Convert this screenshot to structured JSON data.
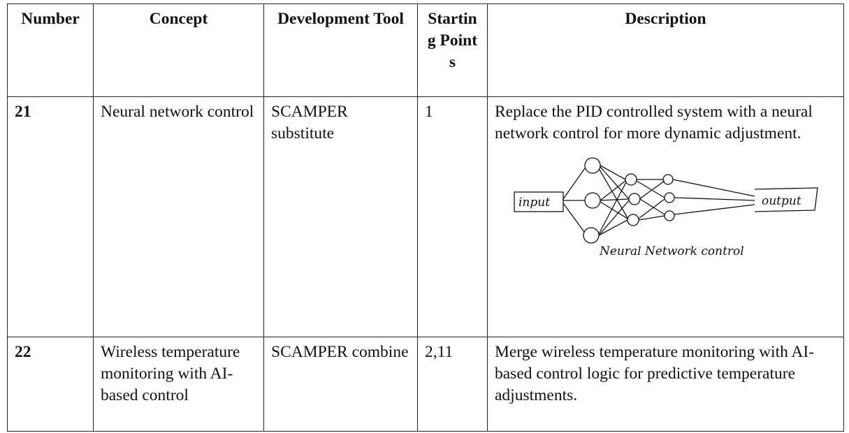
{
  "table": {
    "header": [
      "Number",
      "Concept",
      "Development Tool",
      "Starting Points",
      "Description"
    ],
    "rows": [
      [
        "21",
        "Neural network control",
        "SCAMPER substitute",
        "1",
        "Replace the PID controlled system with a neural network control for more dynamic adjustment."
      ],
      [
        "22",
        "Wireless temperature monitoring with AI-based control",
        "SCAMPER combine",
        "2,11",
        "Merge wireless temperature monitoring with AI-based control logic for predictive temperature adjustments."
      ]
    ]
  },
  "sketch": {
    "input": "input",
    "output": "output",
    "caption": "Neural Network control"
  }
}
